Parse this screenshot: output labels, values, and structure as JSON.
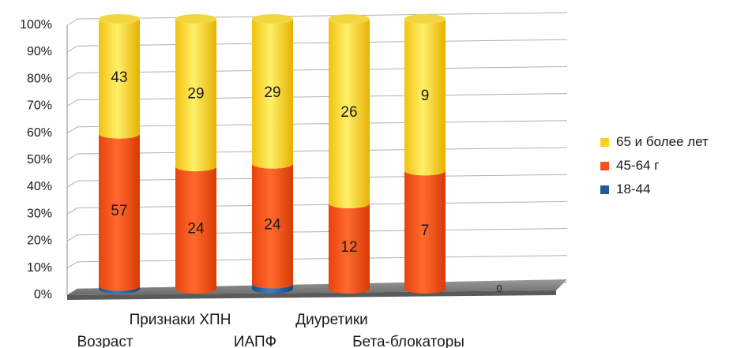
{
  "chart_data": {
    "type": "bar",
    "stacked": true,
    "percent": true,
    "categories": [
      "Возраст",
      "Признаки ХПН",
      "ИАПФ",
      "Диуретики",
      "Бета-блокаторы",
      ""
    ],
    "series": [
      {
        "name": "18-44",
        "values": [
          1,
          0,
          1,
          0,
          0,
          0
        ],
        "color": "#1f5c99"
      },
      {
        "name": "45-64 г",
        "values": [
          57,
          24,
          24,
          12,
          7,
          0
        ],
        "color": "#f4511e"
      },
      {
        "name": "65 и более лет",
        "values": [
          43,
          29,
          29,
          26,
          9,
          0
        ],
        "color": "#f7d21f"
      }
    ],
    "data_labels": {
      "45-64 г": [
        "57",
        "24",
        "24",
        "12",
        "7",
        ""
      ],
      "65 и более лет": [
        "43",
        "29",
        "29",
        "26",
        "9",
        ""
      ]
    },
    "extra_label": "0",
    "y_ticks": [
      "0%",
      "10%",
      "20%",
      "30%",
      "40%",
      "50%",
      "60%",
      "70%",
      "80%",
      "90%",
      "100%"
    ],
    "ylim": [
      0,
      100
    ],
    "grid": true,
    "legend_position": "right",
    "legend_order": [
      "65 и более лет",
      "45-64 г",
      "18-44"
    ]
  }
}
